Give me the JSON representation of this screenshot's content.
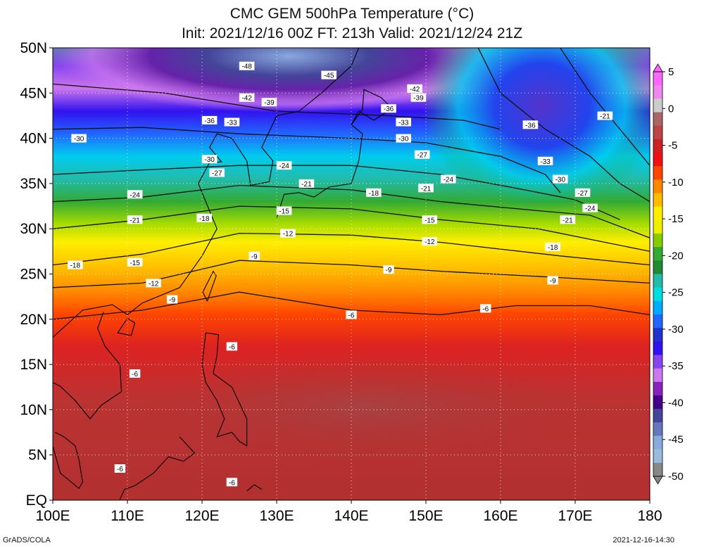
{
  "title": {
    "line1": "CMC GEM 500hPa Temperature (°C)",
    "line2": "Init: 2021/12/16 00Z  FT: 213h  Valid: 2021/12/24 21Z"
  },
  "map": {
    "lon_range": [
      100,
      180
    ],
    "lat_range": [
      0,
      50
    ],
    "lat_labels": [
      "50N",
      "45N",
      "40N",
      "35N",
      "30N",
      "25N",
      "20N",
      "15N",
      "10N",
      "5N",
      "EQ"
    ],
    "lon_labels": [
      "100E",
      "110E",
      "120E",
      "130E",
      "140E",
      "150E",
      "160E",
      "170E",
      "180"
    ],
    "grid": true
  },
  "colorbar": {
    "labels": [
      "5",
      "0",
      "-5",
      "-10",
      "-15",
      "-20",
      "-25",
      "-30",
      "-35",
      "-40",
      "-45",
      "-50"
    ],
    "colors": [
      "#ff66ff",
      "#ee88ee",
      "#cccccc",
      "#aa6666",
      "#bb4444",
      "#cc2222",
      "#ee1111",
      "#ff4400",
      "#ff8800",
      "#ffbb00",
      "#ffee00",
      "#eeee00",
      "#88cc00",
      "#33aa33",
      "#228833",
      "#22bbaa",
      "#00dddd",
      "#00aaff",
      "#2266ff",
      "#2233cc",
      "#3311ee",
      "#8844ee",
      "#cc77ee",
      "#8822bb",
      "#440088",
      "#444499",
      "#6677bb",
      "#88aadd",
      "#99bbdd",
      "#888888"
    ]
  },
  "contour_labels": [
    {
      "text": "-48",
      "lon": 126,
      "lat": 48
    },
    {
      "text": "-45",
      "lon": 137,
      "lat": 47
    },
    {
      "text": "-42",
      "lon": 126,
      "lat": 44.5
    },
    {
      "text": "-39",
      "lon": 129,
      "lat": 44
    },
    {
      "text": "-36",
      "lon": 121,
      "lat": 42
    },
    {
      "text": "-33",
      "lon": 124,
      "lat": 41.8
    },
    {
      "text": "-30",
      "lon": 103.5,
      "lat": 40
    },
    {
      "text": "-30",
      "lon": 121,
      "lat": 37.7
    },
    {
      "text": "-27",
      "lon": 122,
      "lat": 36.2
    },
    {
      "text": "-24",
      "lon": 131,
      "lat": 37
    },
    {
      "text": "-21",
      "lon": 134,
      "lat": 35
    },
    {
      "text": "-24",
      "lon": 111,
      "lat": 33.8
    },
    {
      "text": "-21",
      "lon": 111,
      "lat": 31
    },
    {
      "text": "-18",
      "lon": 120.3,
      "lat": 31.2
    },
    {
      "text": "-15",
      "lon": 131,
      "lat": 32
    },
    {
      "text": "-12",
      "lon": 131.5,
      "lat": 29.5
    },
    {
      "text": "-9",
      "lon": 127,
      "lat": 27
    },
    {
      "text": "-18",
      "lon": 103,
      "lat": 26
    },
    {
      "text": "-15",
      "lon": 111,
      "lat": 26.3
    },
    {
      "text": "-12",
      "lon": 113.5,
      "lat": 24
    },
    {
      "text": "-9",
      "lon": 116,
      "lat": 22.2
    },
    {
      "text": "-42",
      "lon": 148.5,
      "lat": 45.5
    },
    {
      "text": "-39",
      "lon": 149,
      "lat": 44.5
    },
    {
      "text": "-36",
      "lon": 145,
      "lat": 43.3
    },
    {
      "text": "-33",
      "lon": 147,
      "lat": 41.8
    },
    {
      "text": "-30",
      "lon": 147,
      "lat": 40
    },
    {
      "text": "-27",
      "lon": 149.5,
      "lat": 38.2
    },
    {
      "text": "-24",
      "lon": 153,
      "lat": 35.5
    },
    {
      "text": "-21",
      "lon": 150,
      "lat": 34.5
    },
    {
      "text": "-18",
      "lon": 143,
      "lat": 34
    },
    {
      "text": "-15",
      "lon": 150.5,
      "lat": 31
    },
    {
      "text": "-12",
      "lon": 150.5,
      "lat": 28.6
    },
    {
      "text": "-9",
      "lon": 145,
      "lat": 25.5
    },
    {
      "text": "-6",
      "lon": 140,
      "lat": 20.5
    },
    {
      "text": "-6",
      "lon": 158,
      "lat": 21.2
    },
    {
      "text": "-6",
      "lon": 124,
      "lat": 17
    },
    {
      "text": "-6",
      "lon": 111,
      "lat": 14
    },
    {
      "text": "-6",
      "lon": 109,
      "lat": 3.5
    },
    {
      "text": "-6",
      "lon": 124,
      "lat": 2
    },
    {
      "text": "-21",
      "lon": 174,
      "lat": 42.5
    },
    {
      "text": "-36",
      "lon": 164,
      "lat": 41.5
    },
    {
      "text": "-33",
      "lon": 166,
      "lat": 37.5
    },
    {
      "text": "-30",
      "lon": 168,
      "lat": 35.5
    },
    {
      "text": "-27",
      "lon": 171,
      "lat": 34
    },
    {
      "text": "-24",
      "lon": 172,
      "lat": 32.3
    },
    {
      "text": "-21",
      "lon": 169,
      "lat": 31
    },
    {
      "text": "-18",
      "lon": 167,
      "lat": 28
    },
    {
      "text": "-9",
      "lon": 167,
      "lat": 24.3
    }
  ],
  "footer": {
    "left": "GrADS/COLA",
    "right": "2021-12-16-14:30"
  }
}
